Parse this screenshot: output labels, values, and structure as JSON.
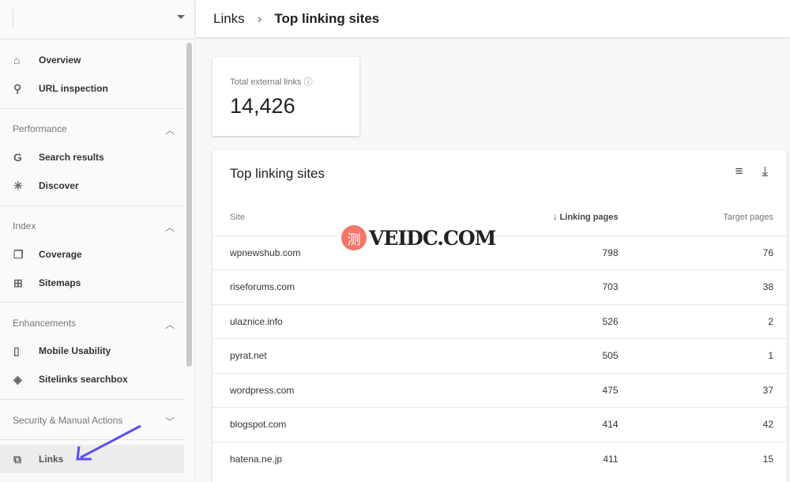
{
  "sidebar": {
    "items": [
      {
        "label": "Overview",
        "icon": "home-icon"
      },
      {
        "label": "URL inspection",
        "icon": "search-icon"
      },
      {
        "label": "Search results",
        "icon": "google-g-icon"
      },
      {
        "label": "Discover",
        "icon": "asterisk-icon"
      },
      {
        "label": "Coverage",
        "icon": "copy-pages-icon"
      },
      {
        "label": "Sitemaps",
        "icon": "sitemap-icon"
      },
      {
        "label": "Mobile Usability",
        "icon": "phone-icon"
      },
      {
        "label": "Sitelinks searchbox",
        "icon": "layers-icon"
      },
      {
        "label": "Links",
        "icon": "network-icon"
      }
    ],
    "sections": [
      "Performance",
      "Index",
      "Enhancements",
      "Security & Manual Actions"
    ]
  },
  "header": {
    "parent": "Links",
    "current": "Top linking sites"
  },
  "summary": {
    "label": "Total external links",
    "value": "14,426"
  },
  "table": {
    "title": "Top linking sites",
    "columns": [
      "Site",
      "Linking pages",
      "Target pages"
    ],
    "rows": [
      [
        "wpnewshub.com",
        "798",
        "76"
      ],
      [
        "riseforums.com",
        "703",
        "38"
      ],
      [
        "ulaznice.info",
        "526",
        "2"
      ],
      [
        "pyrat.net",
        "505",
        "1"
      ],
      [
        "wordpress.com",
        "475",
        "37"
      ],
      [
        "blogspot.com",
        "414",
        "42"
      ],
      [
        "hatena.ne.jp",
        "411",
        "15"
      ]
    ]
  },
  "watermark": {
    "text": "VEIDC.COM",
    "glyph": "测"
  },
  "colors": {
    "arrow": "#5b4ff0",
    "watermark_circle": "#f0786a"
  }
}
